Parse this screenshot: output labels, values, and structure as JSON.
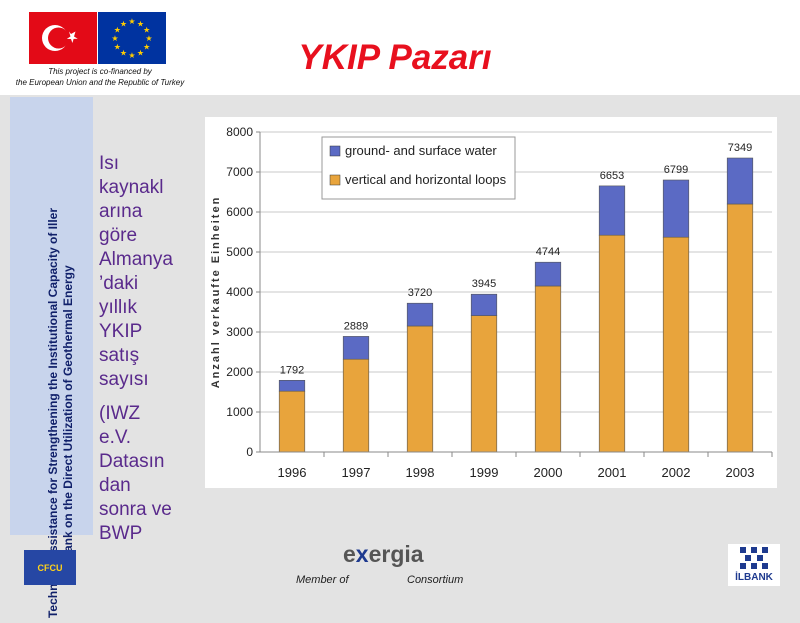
{
  "slide": {
    "title": "YKIP Pazarı",
    "cofinance_line1": "This project is co-financed by",
    "cofinance_line2": "the European Union and the Republic of Turkey",
    "sidebar_text": "Technical Assistance for Strengthening the Institutional Capacity of Iller Bank on the Direct Utilization of Geothermal Energy",
    "description_1": "Isı\nkaynakl\narına\ngöre\nAlmanya\n’daki\nyıllık\nYKIP\nsatış\nsayısı",
    "description_2": "(IWZ\ne.V.\nDatasın\ndan\nsonra ve\nBWP",
    "member_of": "Member of",
    "consortium": "Consortium",
    "exergia_x": "x",
    "exergia_rest": "ergia",
    "exergia_e": "e",
    "cfcu_label": "CFCU",
    "ilbank_label": "İLBANK"
  },
  "colors": {
    "title": "#e8101e",
    "sidebar_bg": "#c8d4ec",
    "description_text": "#5a2a8c",
    "bar_top": "#5b6ac4",
    "bar_bottom": "#e8a43c",
    "turkey_red": "#e30a17",
    "eu_blue": "#0033a0",
    "eu_stars": "#ffcc00"
  },
  "icons": [
    "turkey-flag-icon",
    "eu-flag-icon",
    "cfcu-logo-icon",
    "exergia-logo-icon",
    "ilbank-logo-icon"
  ],
  "chart_data": {
    "type": "bar",
    "stacked": true,
    "title": "",
    "xlabel": "",
    "ylabel": "Anzahl verkaufte Einheiten",
    "categories": [
      "1996",
      "1997",
      "1998",
      "1999",
      "2000",
      "2001",
      "2002",
      "2003"
    ],
    "series": [
      {
        "name": "vertical and horizontal loops",
        "color": "#e8a43c",
        "values": [
          1520,
          2320,
          3150,
          3410,
          4150,
          5420,
          5370,
          6200
        ]
      },
      {
        "name": "ground-  and surface water",
        "color": "#5b6ac4",
        "values": [
          272,
          569,
          570,
          535,
          594,
          1233,
          1429,
          1149
        ]
      }
    ],
    "totals": [
      1792,
      2889,
      3720,
      3945,
      4744,
      6653,
      6799,
      7349
    ],
    "ylim": [
      0,
      8000
    ],
    "yticks": [
      0,
      1000,
      2000,
      3000,
      4000,
      5000,
      6000,
      7000,
      8000
    ],
    "grid": "horizontal",
    "legend": "top-left"
  }
}
